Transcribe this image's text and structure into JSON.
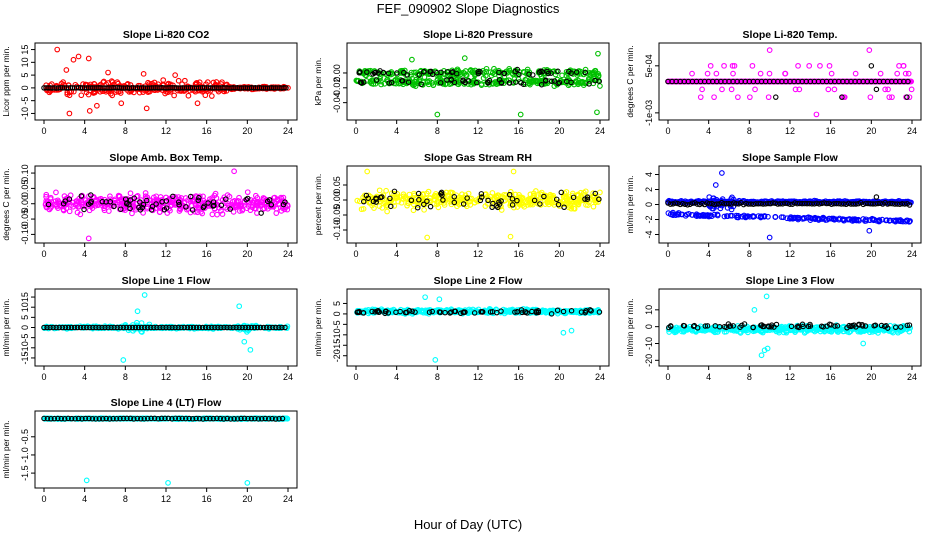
{
  "page": {
    "title": "FEF_090902  Slope Diagnostics",
    "xlabel": "Hour of Day (UTC)"
  },
  "chart_data": [
    {
      "type": "scatter",
      "title": "Slope Li-820 CO2",
      "ylabel": "Licor ppm per min.",
      "color": "#ff0000",
      "x_ticks": [
        "0",
        "4",
        "8",
        "12",
        "16",
        "20",
        "24"
      ],
      "xlim": [
        0,
        24
      ],
      "ylim": [
        -11,
        16
      ],
      "y_ticks": [
        -10,
        -5,
        0,
        5,
        10,
        15
      ],
      "y_tick_labels": [
        "-10",
        "-5",
        "0",
        "5",
        "10",
        "15"
      ],
      "series": [
        {
          "name": "",
          "points": [
            [
              1.3,
              15
            ],
            [
              2.9,
              11
            ],
            [
              3.4,
              12.3
            ],
            [
              4.4,
              11.5
            ],
            [
              2.2,
              7
            ],
            [
              6.3,
              6
            ],
            [
              9.8,
              5.5
            ],
            [
              12.9,
              5
            ],
            [
              4.5,
              -9
            ],
            [
              2.5,
              -10
            ],
            [
              5.2,
              -7
            ],
            [
              10.1,
              -8
            ],
            [
              7.6,
              -6
            ],
            [
              15.1,
              -6
            ]
          ]
        }
      ]
    },
    {
      "type": "scatter",
      "title": "Slope Li-820 Pressure",
      "ylabel": "kPa per min.",
      "color": "#00c000",
      "x_ticks": [
        "0",
        "4",
        "8",
        "12",
        "16",
        "20",
        "24"
      ],
      "xlim": [
        0,
        24
      ],
      "ylim": [
        -0.058,
        0.035
      ],
      "y_ticks": [
        -0.04,
        -0.02,
        0.0
      ],
      "y_tick_labels": [
        "-0.04",
        "-0.02",
        "0.00"
      ],
      "series": [
        {
          "name": "",
          "points": [
            [
              8.0,
              -0.056
            ],
            [
              16.2,
              -0.056
            ],
            [
              23.7,
              -0.053
            ],
            [
              23.8,
              0.026
            ],
            [
              10.7,
              0.02
            ],
            [
              5.5,
              0.018
            ]
          ]
        }
      ]
    },
    {
      "type": "scatter",
      "title": "Slope Li-820 Temp.",
      "ylabel": "degrees C per min.",
      "color": "#ff00ff",
      "x_ticks": [
        "0",
        "4",
        "8",
        "12",
        "16",
        "20",
        "24"
      ],
      "xlim": [
        0,
        24
      ],
      "ylim": [
        -0.0011,
        0.0011
      ],
      "y_ticks": [
        -0.001,
        0.0005
      ],
      "y_tick_labels": [
        "-1e-03",
        "5e-04"
      ],
      "series": [
        {
          "name": "",
          "points": [
            [
              10.0,
              0.001
            ],
            [
              19.8,
              0.001
            ],
            [
              14.6,
              -0.00105
            ]
          ]
        }
      ]
    },
    {
      "type": "scatter",
      "title": "Slope Amb. Box Temp.",
      "ylabel": "degrees C per min.",
      "color": "#ff00ff",
      "x_ticks": [
        "0",
        "4",
        "8",
        "12",
        "16",
        "20",
        "24"
      ],
      "xlim": [
        0,
        24
      ],
      "ylim": [
        -0.115,
        0.11
      ],
      "y_ticks": [
        -0.1,
        -0.05,
        0.0,
        0.05,
        0.1
      ],
      "y_tick_labels": [
        "-0.10",
        "-0.05",
        "0.00",
        "0.05",
        "0.10"
      ],
      "series": [
        {
          "name": "",
          "points": [
            [
              18.7,
              0.106
            ],
            [
              4.4,
              -0.113
            ]
          ]
        }
      ]
    },
    {
      "type": "scatter",
      "title": "Slope Gas Stream RH",
      "ylabel": "percent per min.",
      "color": "#ffff00",
      "x_ticks": [
        "0",
        "4",
        "8",
        "12",
        "16",
        "20",
        "24"
      ],
      "xlim": [
        0,
        24
      ],
      "ylim": [
        -0.13,
        0.1
      ],
      "y_ticks": [
        -0.1,
        -0.05,
        0.0,
        0.05
      ],
      "y_tick_labels": [
        "-0.10",
        "-0.05",
        "0.00",
        "0.05"
      ],
      "series": [
        {
          "name": "",
          "points": [
            [
              1.1,
              0.095
            ],
            [
              15.5,
              0.095
            ],
            [
              7.0,
              -0.125
            ],
            [
              15.2,
              -0.122
            ]
          ]
        }
      ]
    },
    {
      "type": "scatter",
      "title": "Slope Sample Flow",
      "ylabel": "ml/min per min.",
      "color": "#0000ff",
      "x_ticks": [
        "0",
        "4",
        "8",
        "12",
        "16",
        "20",
        "24"
      ],
      "xlim": [
        0,
        24
      ],
      "ylim": [
        -4.6,
        4.6
      ],
      "y_ticks": [
        -4,
        -2,
        0,
        2,
        4
      ],
      "y_tick_labels": [
        "-4",
        "-2",
        "0",
        "2",
        "4"
      ],
      "series": [
        {
          "name": "",
          "points": [
            [
              5.3,
              4.2
            ],
            [
              4.7,
              2.6
            ],
            [
              10.0,
              -4.4
            ],
            [
              19.8,
              -3.5
            ]
          ]
        }
      ]
    },
    {
      "type": "scatter",
      "title": "Slope Line 1 Flow",
      "ylabel": "ml/min per min.",
      "color": "#00ffff",
      "x_ticks": [
        "0",
        "4",
        "8",
        "12",
        "16",
        "20",
        "24"
      ],
      "xlim": [
        0,
        24
      ],
      "ylim": [
        -17,
        17
      ],
      "y_ticks": [
        -15,
        -10,
        -5,
        0,
        5,
        10,
        15
      ],
      "y_tick_labels": [
        "-15",
        "-10",
        "-5",
        "0",
        "5",
        "10",
        "15"
      ],
      "series": [
        {
          "name": "",
          "points": [
            [
              9.9,
              16
            ],
            [
              7.8,
              -16
            ],
            [
              19.2,
              10.5
            ],
            [
              20.3,
              -11
            ],
            [
              9.2,
              8
            ],
            [
              19.7,
              -7
            ]
          ]
        }
      ]
    },
    {
      "type": "scatter",
      "title": "Slope Line 2 Flow",
      "ylabel": "ml/min per min.",
      "color": "#00ffff",
      "x_ticks": [
        "0",
        "4",
        "8",
        "12",
        "16",
        "20",
        "24"
      ],
      "xlim": [
        0,
        24
      ],
      "ylim": [
        -23,
        10
      ],
      "y_ticks": [
        -20,
        -15,
        -10,
        -5,
        0,
        5
      ],
      "y_tick_labels": [
        "-20",
        "-15",
        "-10",
        "-5",
        "0",
        "5"
      ],
      "series": [
        {
          "name": "",
          "points": [
            [
              7.8,
              -22
            ],
            [
              6.8,
              8
            ],
            [
              8.2,
              7
            ],
            [
              20.4,
              -9
            ],
            [
              21.2,
              -8
            ]
          ]
        }
      ]
    },
    {
      "type": "scatter",
      "title": "Slope Line 3 Flow",
      "ylabel": "ml/min per min.",
      "color": "#00ffff",
      "x_ticks": [
        "0",
        "4",
        "8",
        "12",
        "16",
        "20",
        "24"
      ],
      "xlim": [
        0,
        24
      ],
      "ylim": [
        -21,
        20
      ],
      "y_ticks": [
        -20,
        -10,
        0,
        10
      ],
      "y_tick_labels": [
        "-20",
        "-10",
        "0",
        "10"
      ],
      "series": [
        {
          "name": "",
          "points": [
            [
              9.7,
              18
            ],
            [
              9.2,
              -17
            ],
            [
              9.5,
              -14
            ],
            [
              9.8,
              -13
            ],
            [
              8.5,
              10
            ],
            [
              19.2,
              -10
            ]
          ]
        }
      ]
    },
    {
      "type": "scatter",
      "title": "Slope Line 4 (LT) Flow",
      "ylabel": "ml/min per min.",
      "color": "#00ffff",
      "x_ticks": [
        "0",
        "4",
        "8",
        "12",
        "16",
        "20",
        "24"
      ],
      "xlim": [
        0,
        24
      ],
      "ylim": [
        -1.8,
        0.1
      ],
      "y_ticks": [
        -1.5,
        -1.0,
        -0.5
      ],
      "y_tick_labels": [
        "-1.5",
        "-1.0",
        "-0.5"
      ],
      "series": [
        {
          "name": "",
          "points": [
            [
              4.2,
              -1.7
            ],
            [
              12.2,
              -1.77
            ],
            [
              20.0,
              -1.77
            ]
          ]
        }
      ]
    }
  ]
}
